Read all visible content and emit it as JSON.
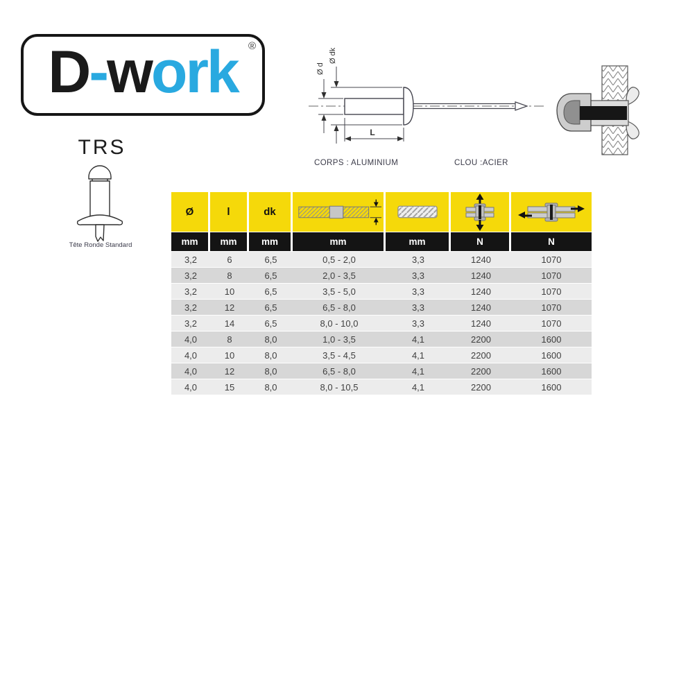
{
  "colors": {
    "logo_blue": "#29A9E0",
    "logo_black": "#1A1A1A",
    "header_yellow": "#F5D90A",
    "header_black": "#141414",
    "row_light": "#ECECEC",
    "row_dark": "#D7D7D7"
  },
  "logo": {
    "segments": [
      {
        "text": "D"
      },
      {
        "text": "-"
      },
      {
        "text": "w"
      },
      {
        "text": "ork"
      }
    ],
    "registered": "®"
  },
  "product": {
    "code": "TRS",
    "caption": "Tête Ronde Standard"
  },
  "drawing": {
    "dim_d": "Ø d",
    "dim_dk": "Ø dk",
    "dim_length": "L",
    "body_material": "CORPS : ALUMINIUM",
    "nail_material": "CLOU :ACIER"
  },
  "table": {
    "headers": {
      "diameter": "Ø",
      "length": "l",
      "head_diameter": "dk"
    },
    "header_icons": [
      "grip-range-icon",
      "drill-diameter-icon",
      "tensile-strength-icon",
      "shear-strength-icon"
    ],
    "units": [
      "mm",
      "mm",
      "mm",
      "mm",
      "mm",
      "N",
      "N"
    ],
    "rows": [
      [
        "3,2",
        "6",
        "6,5",
        "0,5 - 2,0",
        "3,3",
        "1240",
        "1070"
      ],
      [
        "3,2",
        "8",
        "6,5",
        "2,0 - 3,5",
        "3,3",
        "1240",
        "1070"
      ],
      [
        "3,2",
        "10",
        "6,5",
        "3,5 - 5,0",
        "3,3",
        "1240",
        "1070"
      ],
      [
        "3,2",
        "12",
        "6,5",
        "6,5 - 8,0",
        "3,3",
        "1240",
        "1070"
      ],
      [
        "3,2",
        "14",
        "6,5",
        "8,0 - 10,0",
        "3,3",
        "1240",
        "1070"
      ],
      [
        "4,0",
        "8",
        "8,0",
        "1,0 - 3,5",
        "4,1",
        "2200",
        "1600"
      ],
      [
        "4,0",
        "10",
        "8,0",
        "3,5 - 4,5",
        "4,1",
        "2200",
        "1600"
      ],
      [
        "4,0",
        "12",
        "8,0",
        "6,5 - 8,0",
        "4,1",
        "2200",
        "1600"
      ],
      [
        "4,0",
        "15",
        "8,0",
        "8,0 - 10,5",
        "4,1",
        "2200",
        "1600"
      ]
    ]
  }
}
